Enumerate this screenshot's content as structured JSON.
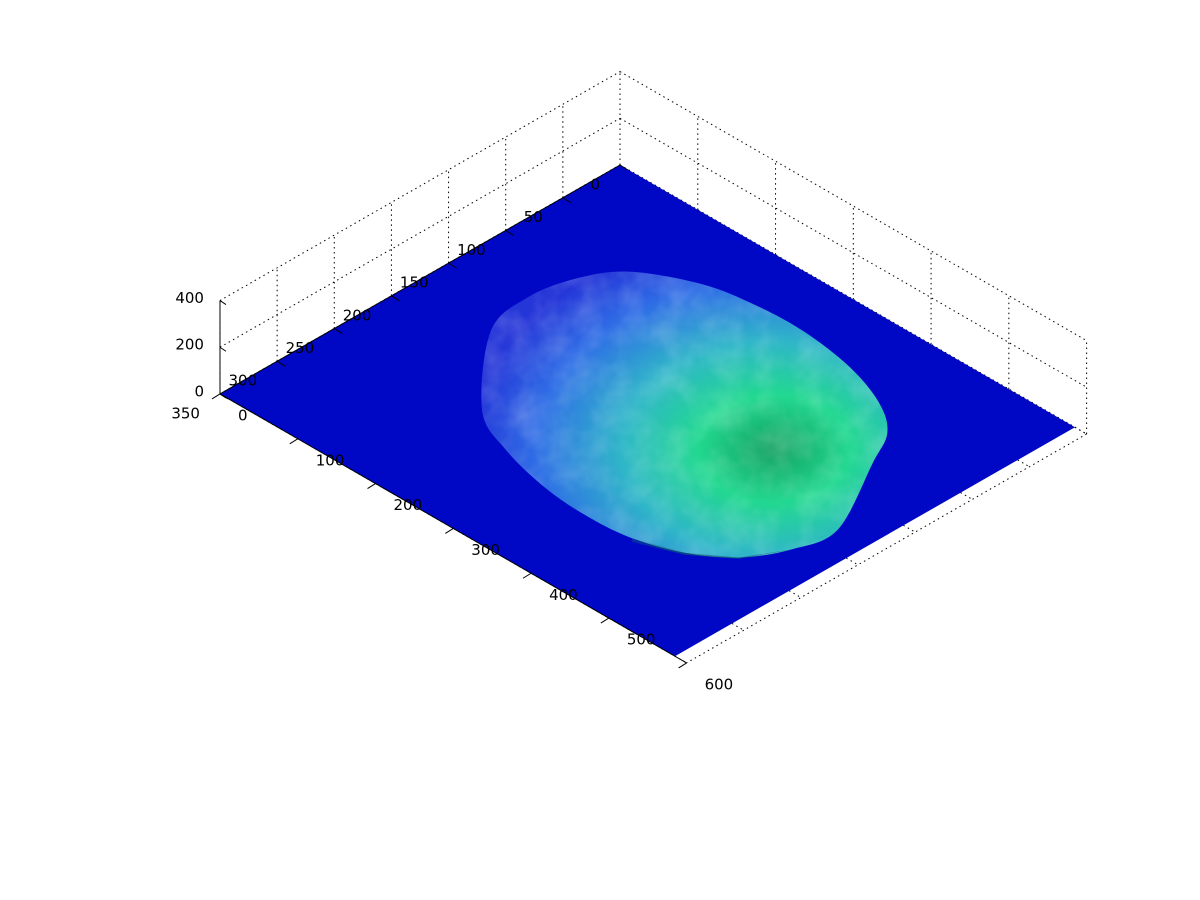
{
  "chart_data": {
    "type": "surface",
    "title": "",
    "xlabel": "",
    "ylabel": "",
    "zlabel": "",
    "x_axis": {
      "ticks": [
        0,
        100,
        200,
        300,
        400,
        500,
        600
      ],
      "labels": [
        "0",
        "100",
        "200",
        "300",
        "400",
        "500",
        "600"
      ],
      "lim": [
        0,
        600
      ]
    },
    "y_axis": {
      "ticks": [
        0,
        50,
        100,
        150,
        200,
        250,
        300,
        350
      ],
      "labels": [
        "0",
        "50",
        "100",
        "150",
        "200",
        "250",
        "300",
        "350"
      ],
      "lim": [
        0,
        350
      ]
    },
    "z_axis": {
      "ticks": [
        0,
        200,
        400
      ],
      "labels": [
        "0",
        "200",
        "400"
      ],
      "lim": [
        0,
        400
      ]
    },
    "grid": true,
    "colormap": "winter-like (blue to green)",
    "base_color": "#0008c6",
    "surface_low_color": "#2a5de8",
    "surface_high_color": "#00b86a",
    "surface_peak_color": "#20f0a8",
    "surface_description": "single rounded mound on a flat base plane; height rises toward the large-x side of the plate"
  }
}
